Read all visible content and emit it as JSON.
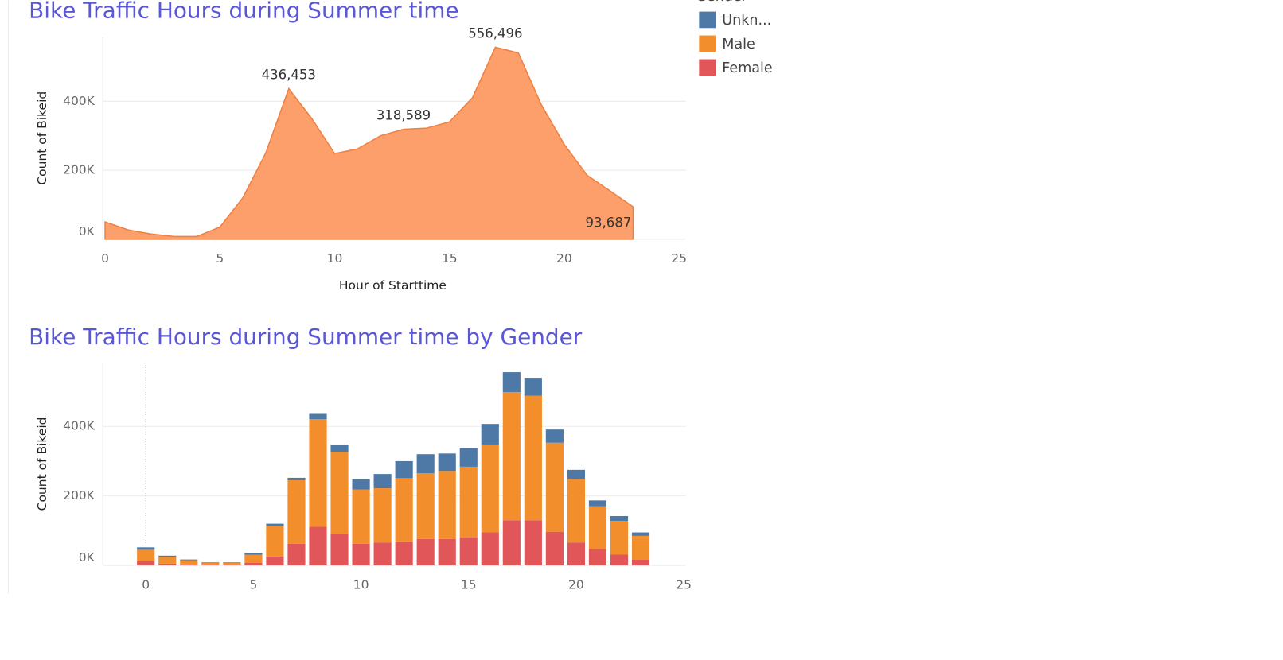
{
  "chart_data": [
    {
      "type": "area",
      "title": "Bike Traffic Hours during Summer time",
      "x_label": "Hour of Starttime",
      "y_label": "Count of Bikeid",
      "x": [
        0,
        1,
        2,
        3,
        4,
        5,
        6,
        7,
        8,
        9,
        10,
        11,
        12,
        13,
        14,
        15,
        16,
        17,
        18,
        19,
        20,
        21,
        22,
        23
      ],
      "values": [
        50000,
        27000,
        15000,
        8000,
        8000,
        35000,
        120000,
        250000,
        436453,
        350000,
        248000,
        262000,
        300000,
        318589,
        322000,
        340000,
        410000,
        556496,
        540000,
        390000,
        275000,
        185000,
        140000,
        93687
      ],
      "value_labels": [
        null,
        null,
        null,
        null,
        null,
        null,
        null,
        null,
        "436,453",
        null,
        null,
        null,
        null,
        "318,589",
        null,
        null,
        null,
        "556,496",
        null,
        null,
        null,
        null,
        null,
        "93,687"
      ],
      "color": "#fd9a63",
      "xlim": [
        -0.1,
        25.3
      ],
      "xticks": [
        0,
        5,
        10,
        15,
        20,
        25
      ],
      "ylim": [
        0,
        586000
      ],
      "yticks": [
        {
          "value": 0,
          "label": "0K"
        },
        {
          "value": 200000,
          "label": "200K"
        },
        {
          "value": 400000,
          "label": "400K"
        }
      ],
      "grid": true
    },
    {
      "type": "stacked_bar",
      "title": "Bike Traffic Hours during Summer time by Gender",
      "y_label": "Count of Bikeid",
      "legend_title": "Gender",
      "x": [
        0,
        1,
        2,
        3,
        4,
        5,
        6,
        7,
        8,
        9,
        10,
        11,
        12,
        13,
        14,
        15,
        16,
        17,
        18,
        19,
        20,
        21,
        22,
        23
      ],
      "series": [
        {
          "name": "Unkn...",
          "color": "#4e79a7",
          "values": [
            7000,
            3000,
            2000,
            1000,
            1000,
            4000,
            6000,
            7000,
            15000,
            21000,
            30000,
            41000,
            49000,
            55000,
            50000,
            54000,
            59000,
            57000,
            52000,
            38000,
            26000,
            17000,
            14000,
            10000
          ]
        },
        {
          "name": "Male",
          "color": "#f28e2b",
          "values": [
            33000,
            20000,
            12000,
            6000,
            6000,
            24000,
            88000,
            183000,
            310000,
            237000,
            156000,
            156000,
            182000,
            189000,
            196000,
            204000,
            253000,
            369000,
            358000,
            256000,
            183000,
            123000,
            97000,
            68000
          ]
        },
        {
          "name": "Female",
          "color": "#e15759",
          "values": [
            12000,
            5000,
            3000,
            2000,
            2000,
            7000,
            26000,
            62000,
            111000,
            90000,
            62000,
            66000,
            69000,
            76000,
            76000,
            80000,
            95000,
            130000,
            130000,
            97000,
            66000,
            47000,
            31000,
            17000
          ]
        }
      ],
      "xlim": [
        -2,
        25.1
      ],
      "xticks": [
        0,
        5,
        10,
        15,
        20,
        25
      ],
      "ylim": [
        0,
        584000
      ],
      "yticks": [
        {
          "value": 0,
          "label": "0K"
        },
        {
          "value": 200000,
          "label": "200K"
        },
        {
          "value": 400000,
          "label": "400K"
        }
      ],
      "grid": true
    }
  ]
}
